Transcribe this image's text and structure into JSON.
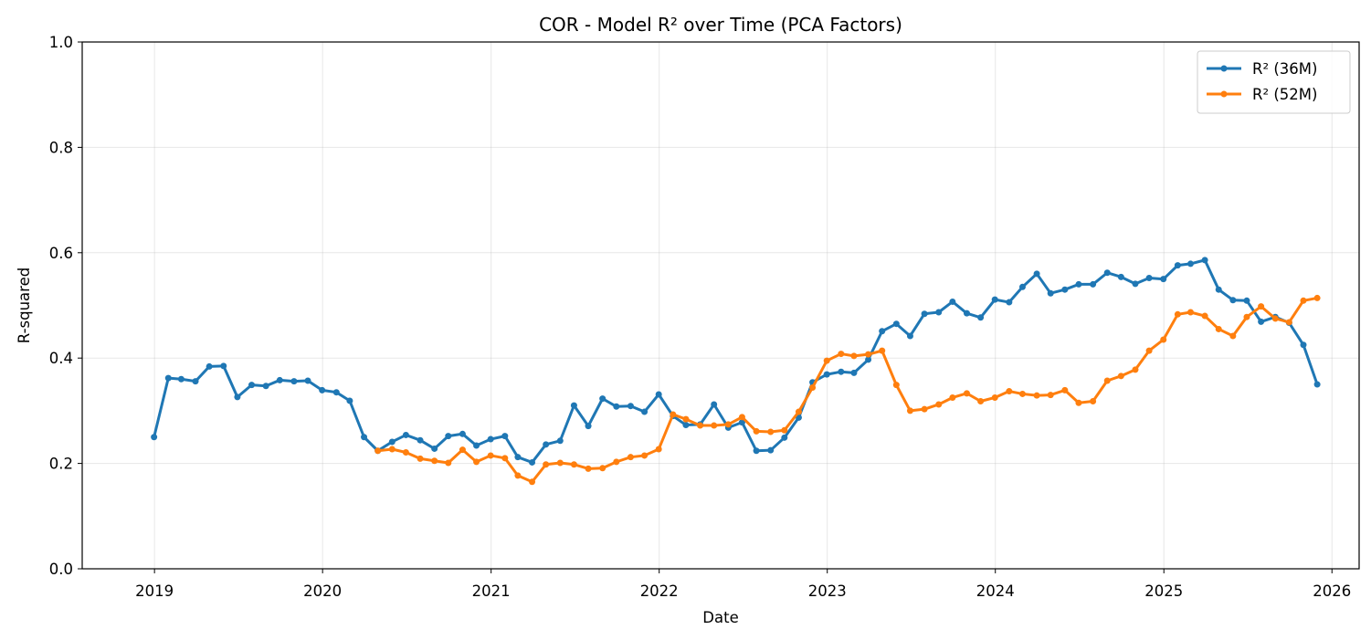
{
  "chart_data": {
    "type": "line",
    "title": "COR - Model R² over Time (PCA Factors)",
    "xlabel": "Date",
    "ylabel": "R-squared",
    "ylim": [
      0,
      1.0
    ],
    "xlim": [
      "2018-07-28",
      "2026-03-01"
    ],
    "grid": true,
    "legend_position": "top-right",
    "x_ticks": [
      "2019",
      "2020",
      "2021",
      "2022",
      "2023",
      "2024",
      "2025",
      "2026"
    ],
    "y_ticks": [
      "0.0",
      "0.2",
      "0.4",
      "0.6",
      "0.8",
      "1.0"
    ],
    "series": [
      {
        "name": "R² (36M)",
        "color": "#1f77b4",
        "start_month": "2018-12",
        "values": [
          0.25,
          0.362,
          0.36,
          0.356,
          0.384,
          0.385,
          0.326,
          0.349,
          0.347,
          0.358,
          0.356,
          0.357,
          0.339,
          0.335,
          0.319,
          0.25,
          0.224,
          0.241,
          0.254,
          0.244,
          0.228,
          0.252,
          0.256,
          0.234,
          0.246,
          0.252,
          0.212,
          0.202,
          0.236,
          0.243,
          0.31,
          0.271,
          0.323,
          0.308,
          0.309,
          0.298,
          0.331,
          0.29,
          0.273,
          0.274,
          0.312,
          0.268,
          0.278,
          0.224,
          0.225,
          0.249,
          0.287,
          0.354,
          0.369,
          0.374,
          0.372,
          0.397,
          0.451,
          0.465,
          0.442,
          0.484,
          0.487,
          0.507,
          0.485,
          0.477,
          0.511,
          0.506,
          0.535,
          0.56,
          0.523,
          0.53,
          0.54,
          0.54,
          0.562,
          0.554,
          0.541,
          0.552,
          0.55,
          0.576,
          0.579,
          0.586,
          0.53,
          0.51,
          0.509,
          0.469,
          0.478,
          0.467,
          0.425,
          0.35
        ]
      },
      {
        "name": "R² (52M)",
        "color": "#ff7f0e",
        "start_month": "2020-04",
        "values": [
          0.224,
          0.227,
          0.221,
          0.209,
          0.205,
          0.201,
          0.226,
          0.203,
          0.215,
          0.21,
          0.177,
          0.165,
          0.198,
          0.201,
          0.198,
          0.19,
          0.191,
          0.203,
          0.212,
          0.215,
          0.227,
          0.293,
          0.284,
          0.272,
          0.272,
          0.274,
          0.288,
          0.261,
          0.26,
          0.263,
          0.298,
          0.344,
          0.395,
          0.408,
          0.404,
          0.407,
          0.414,
          0.349,
          0.3,
          0.303,
          0.312,
          0.325,
          0.333,
          0.318,
          0.325,
          0.337,
          0.332,
          0.329,
          0.33,
          0.339,
          0.315,
          0.318,
          0.357,
          0.366,
          0.378,
          0.414,
          0.435,
          0.483,
          0.487,
          0.48,
          0.455,
          0.442,
          0.478,
          0.498,
          0.475,
          0.468,
          0.509,
          0.514
        ]
      }
    ]
  }
}
